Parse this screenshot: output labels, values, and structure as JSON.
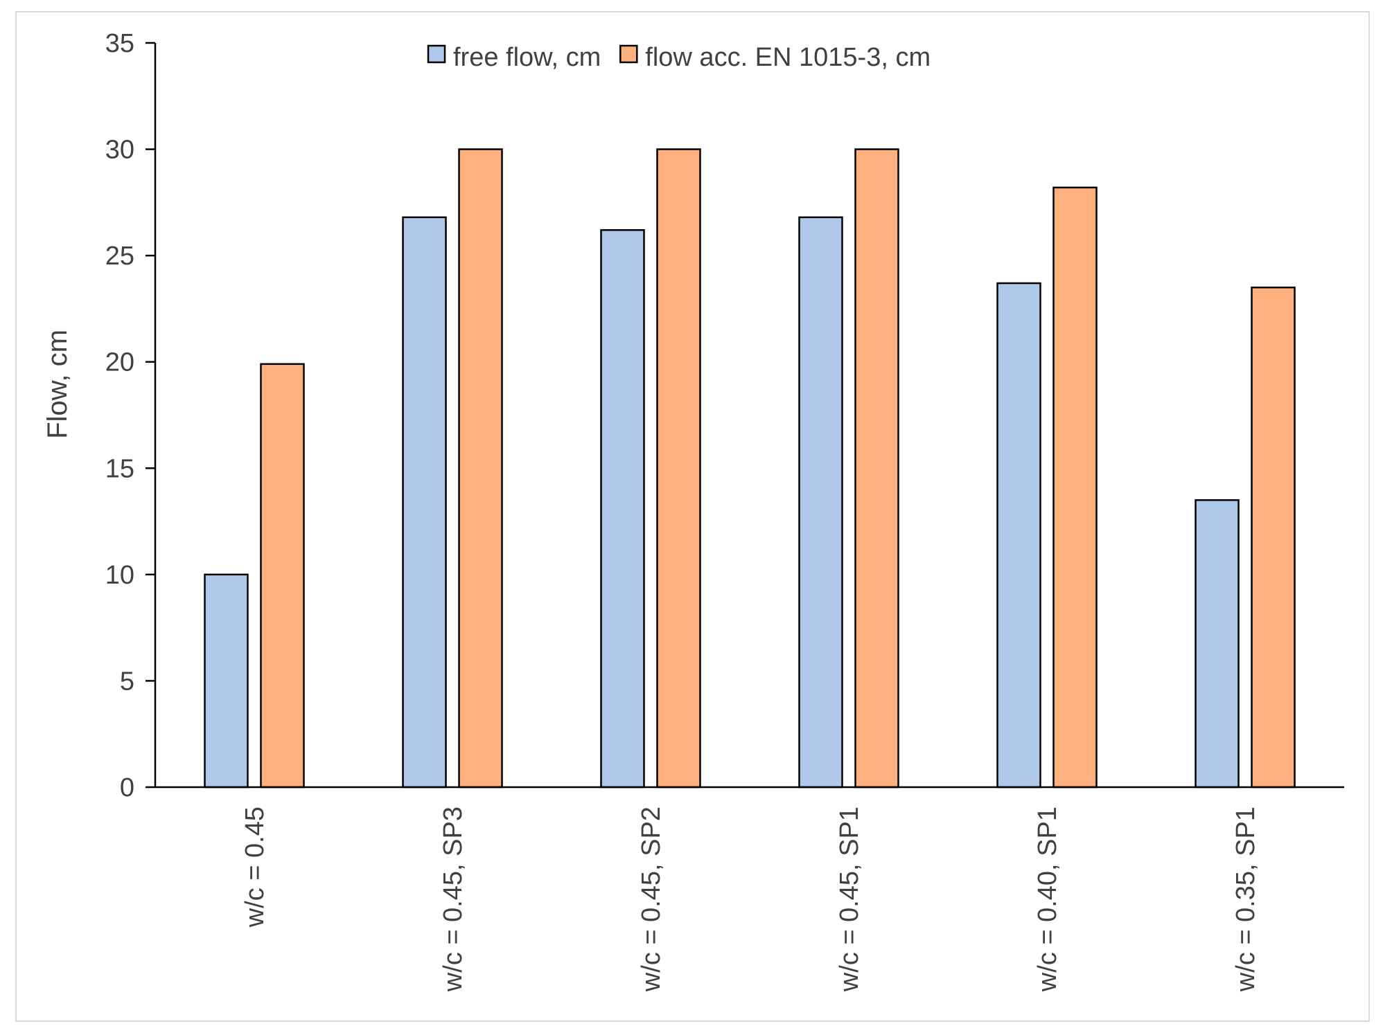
{
  "chart_data": {
    "type": "bar",
    "title": "",
    "xlabel": "",
    "ylabel": "Flow, cm",
    "ylim": [
      0,
      35
    ],
    "yticks": [
      "0",
      "5",
      "10",
      "15",
      "20",
      "25",
      "30",
      "35"
    ],
    "categories": [
      "w/c = 0.45",
      "w/c = 0.45, SP3",
      "w/c = 0.45, SP2",
      "w/c = 0.45, SP1",
      "w/c = 0.40, SP1",
      "w/c = 0.35, SP1"
    ],
    "series": [
      {
        "name": "free flow, cm",
        "color": "#afc8e9",
        "values": [
          10.0,
          26.8,
          26.2,
          26.8,
          23.7,
          13.5
        ]
      },
      {
        "name": "flow acc. EN 1015-3, cm",
        "color": "#ffb07f",
        "values": [
          19.9,
          30.0,
          30.0,
          30.0,
          28.2,
          23.5
        ]
      }
    ],
    "legend": "top-center",
    "grid": false,
    "bar_edge_color": "#000000"
  }
}
